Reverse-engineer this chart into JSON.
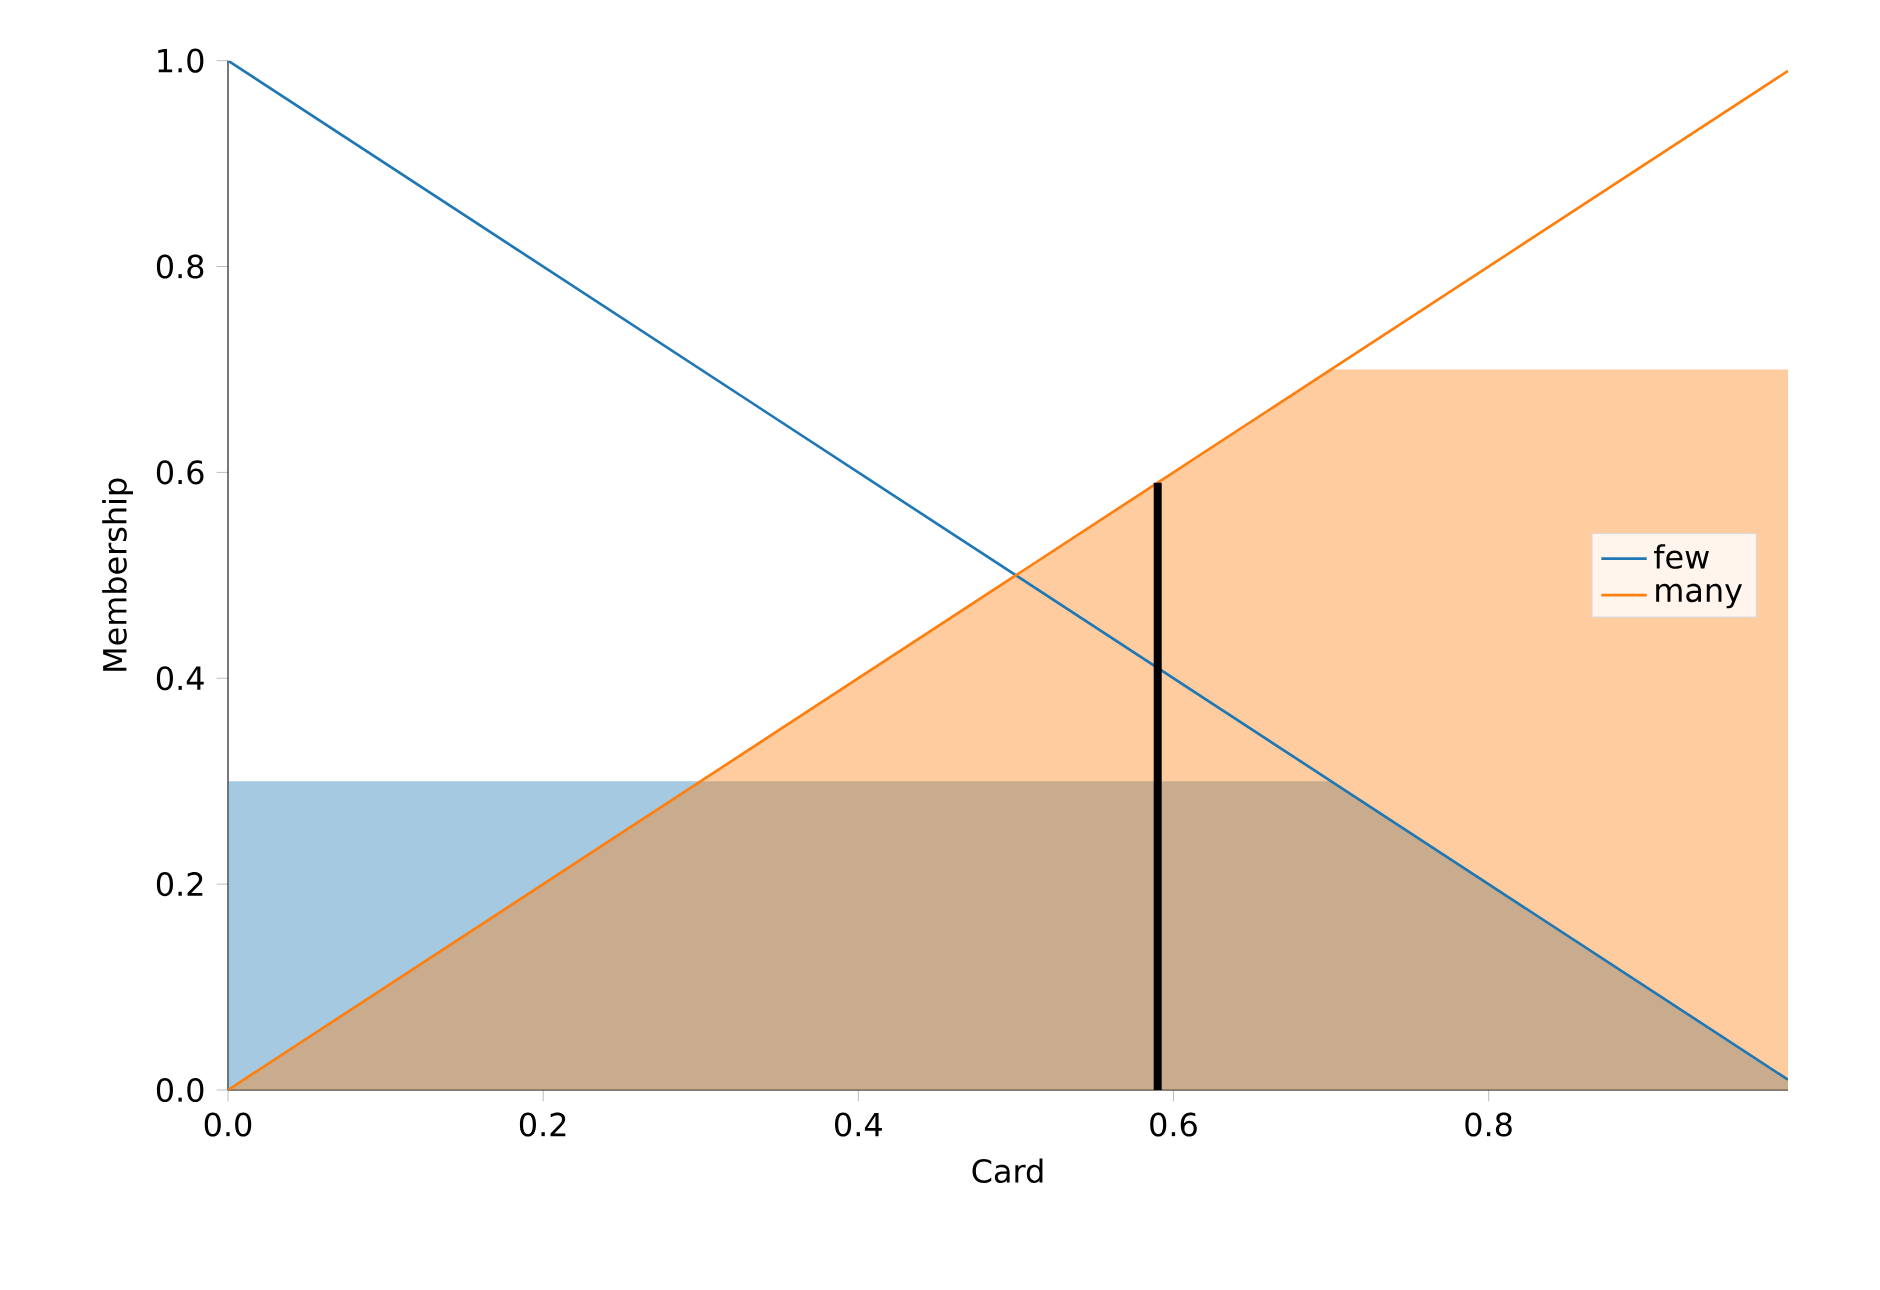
{
  "chart_data": {
    "type": "line",
    "xlabel": "Card",
    "ylabel": "Membership",
    "xlim": [
      0,
      0.99
    ],
    "ylim": [
      0,
      1
    ],
    "xticks": [
      {
        "value": 0,
        "label": "0.0"
      },
      {
        "value": 0.2,
        "label": "0.2"
      },
      {
        "value": 0.4,
        "label": "0.4"
      },
      {
        "value": 0.6,
        "label": "0.6"
      },
      {
        "value": 0.8,
        "label": "0.8"
      }
    ],
    "yticks": [
      {
        "value": 0,
        "label": "0.0"
      },
      {
        "value": 0.2,
        "label": "0.2"
      },
      {
        "value": 0.4,
        "label": "0.4"
      },
      {
        "value": 0.6,
        "label": "0.6"
      },
      {
        "value": 0.8,
        "label": "0.8"
      },
      {
        "value": 1,
        "label": "1.0"
      }
    ],
    "legend": "right",
    "series": [
      {
        "type": "area",
        "color": "#1f77b4",
        "x": [
          0,
          0.7,
          0.99
        ],
        "values": [
          0.3,
          0.3,
          0.01
        ]
      },
      {
        "type": "area",
        "color": "#ff7f0e",
        "x": [
          0,
          0.7,
          0.99
        ],
        "values": [
          0,
          0.7,
          0.7
        ]
      },
      {
        "name": "few",
        "color": "#1f77b4",
        "x": [
          0,
          0.99
        ],
        "values": [
          1,
          0.01
        ]
      },
      {
        "name": "many",
        "color": "#ff7f0e",
        "x": [
          0,
          0.99
        ],
        "values": [
          0,
          0.99
        ]
      },
      {
        "color": "#000000",
        "x": [
          0.59,
          0.59
        ],
        "values": [
          0,
          0.59
        ]
      }
    ]
  }
}
